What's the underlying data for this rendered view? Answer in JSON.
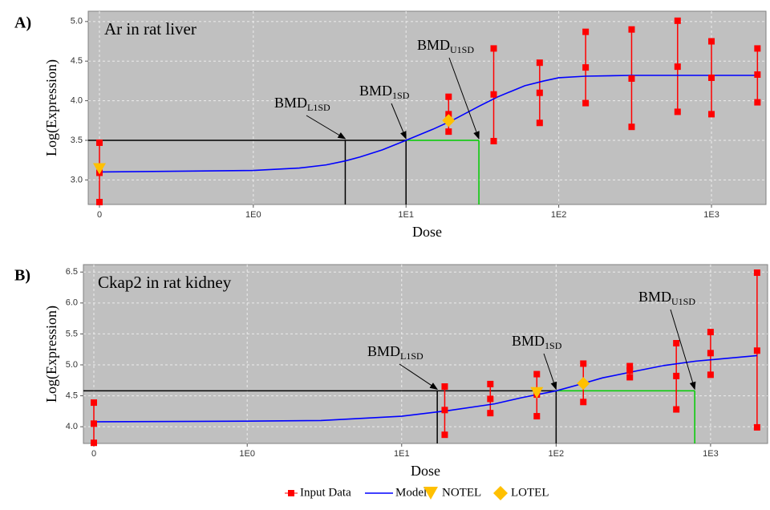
{
  "chart_data": [
    {
      "type": "scatter",
      "panel_label": "A)",
      "title": "Ar in rat liver",
      "x_label": "Dose",
      "y_label": "Log(Expression)",
      "x_scale": "log",
      "xlim": [
        0.083,
        2275
      ],
      "ylim": [
        2.69,
        5.13
      ],
      "grid": true,
      "background": "#c0c0c0",
      "xticks": [
        0,
        {
          "value": 1,
          "label": "1E0"
        },
        {
          "value": 10,
          "label": "1E1"
        },
        {
          "value": 100,
          "label": "1E2"
        },
        {
          "value": 1000,
          "label": "1E3"
        }
      ],
      "yticks": [
        {
          "value": 3,
          "label": "3.0"
        },
        3.5,
        {
          "value": 4,
          "label": "4.0"
        },
        4.5,
        {
          "value": 5,
          "label": "5.0"
        }
      ],
      "series": [
        {
          "name": "Input Data",
          "color": "#ff0000",
          "marker": "square",
          "x": [
            0,
            0,
            0,
            19,
            19,
            19,
            37.5,
            37.5,
            37.5,
            75,
            75,
            75,
            150,
            150,
            150,
            300,
            300,
            300,
            600,
            600,
            600,
            1000,
            1000,
            1000,
            2000,
            2000,
            2000
          ],
          "y": [
            3.47,
            3.09,
            2.72,
            4.05,
            3.83,
            3.61,
            4.66,
            4.08,
            3.49,
            4.48,
            4.1,
            3.72,
            4.87,
            4.42,
            3.97,
            4.9,
            4.28,
            3.67,
            5.01,
            4.43,
            3.86,
            4.75,
            4.29,
            3.83,
            4.66,
            4.33,
            3.98
          ]
        },
        {
          "name": "Model",
          "color": "#0000ff",
          "marker": "line",
          "x": [
            0,
            1,
            2,
            3,
            4,
            5,
            7,
            10,
            15,
            20,
            30,
            40,
            60,
            80,
            100,
            150,
            300,
            2000
          ],
          "y": [
            3.1,
            3.12,
            3.15,
            3.19,
            3.24,
            3.29,
            3.38,
            3.5,
            3.64,
            3.75,
            3.93,
            4.05,
            4.19,
            4.25,
            4.29,
            4.31,
            4.32,
            4.32
          ]
        },
        {
          "name": "NOTEL",
          "color": "#ffc000",
          "marker": "triangle-down",
          "x": [
            0
          ],
          "y": [
            3.14
          ]
        },
        {
          "name": "LOTEL",
          "color": "#ffc000",
          "marker": "diamond",
          "x": [
            19
          ],
          "y": [
            3.75
          ]
        }
      ],
      "bmd": {
        "level": 3.5,
        "markers": [
          {
            "text": "BMD",
            "subscript": "L1SD",
            "value": 4.0,
            "color": "#000000"
          },
          {
            "text": "BMD",
            "subscript": "1SD",
            "value": 10,
            "color": "#000000"
          },
          {
            "text": "BMD",
            "subscript": "U1SD",
            "value": 30,
            "color": "#00cc00"
          }
        ]
      }
    },
    {
      "type": "scatter",
      "panel_label": "B)",
      "title": "Ckap2 in rat kidney",
      "x_label": "Dose",
      "y_label": "Log(Expression)",
      "x_scale": "log",
      "xlim": [
        0.087,
        2340
      ],
      "ylim": [
        3.73,
        6.62
      ],
      "grid": true,
      "background": "#c0c0c0",
      "xticks": [
        0,
        {
          "value": 1,
          "label": "1E0"
        },
        {
          "value": 10,
          "label": "1E1"
        },
        {
          "value": 100,
          "label": "1E2"
        },
        {
          "value": 1000,
          "label": "1E3"
        }
      ],
      "yticks": [
        {
          "value": 4,
          "label": "4.0"
        },
        4.5,
        {
          "value": 5,
          "label": "5.0"
        },
        5.5,
        {
          "value": 6,
          "label": "6.0"
        },
        6.5
      ],
      "series": [
        {
          "name": "Input Data",
          "color": "#ff0000",
          "marker": "square",
          "x": [
            0,
            0,
            0,
            19,
            19,
            19,
            37.5,
            37.5,
            37.5,
            75,
            75,
            75,
            150,
            150,
            150,
            300,
            300,
            300,
            600,
            600,
            600,
            1000,
            1000,
            1000,
            2000,
            2000,
            2000
          ],
          "y": [
            4.39,
            4.05,
            3.74,
            4.65,
            4.27,
            3.87,
            4.69,
            4.45,
            4.22,
            4.85,
            4.52,
            4.17,
            5.02,
            4.7,
            4.4,
            4.98,
            4.91,
            4.8,
            5.35,
            4.82,
            4.28,
            5.53,
            5.19,
            4.84,
            6.49,
            5.23,
            3.99
          ]
        },
        {
          "name": "Model",
          "color": "#0000ff",
          "marker": "line",
          "x": [
            0,
            1,
            3,
            10,
            20,
            40,
            60,
            100,
            150,
            200,
            300,
            500,
            800,
            2000
          ],
          "y": [
            4.08,
            4.09,
            4.1,
            4.17,
            4.26,
            4.37,
            4.47,
            4.58,
            4.7,
            4.79,
            4.88,
            4.99,
            5.06,
            5.15
          ]
        },
        {
          "name": "NOTEL",
          "color": "#ffc000",
          "marker": "triangle-down",
          "x": [
            75
          ],
          "y": [
            4.55
          ]
        },
        {
          "name": "LOTEL",
          "color": "#ffc000",
          "marker": "diamond",
          "x": [
            150
          ],
          "y": [
            4.7
          ]
        }
      ],
      "bmd": {
        "level": 4.58,
        "markers": [
          {
            "text": "BMD",
            "subscript": "L1SD",
            "value": 17,
            "color": "#000000"
          },
          {
            "text": "BMD",
            "subscript": "1SD",
            "value": 100,
            "color": "#000000"
          },
          {
            "text": "BMD",
            "subscript": "U1SD",
            "value": 790,
            "color": "#00cc00"
          }
        ]
      }
    }
  ]
}
